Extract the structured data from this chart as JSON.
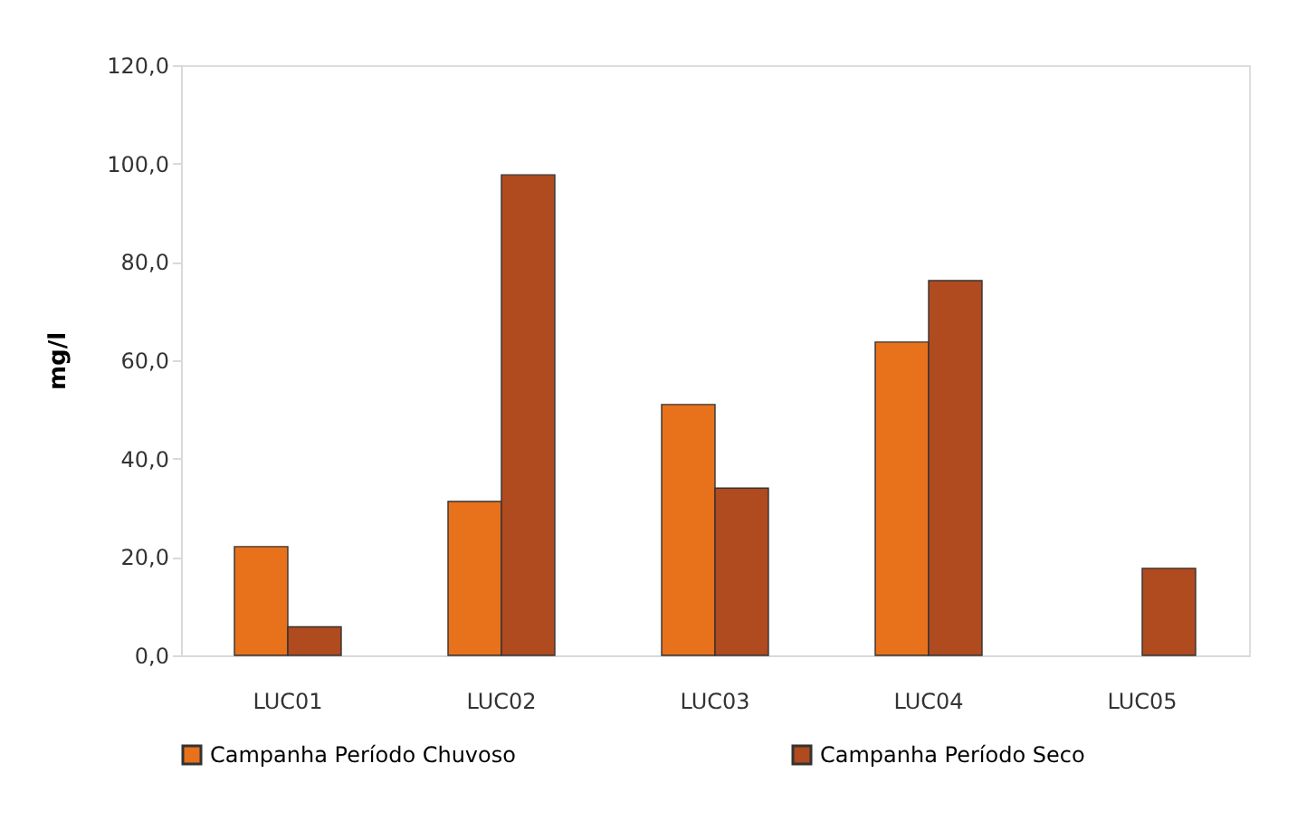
{
  "chart_data": {
    "type": "bar",
    "ylabel": "mg/l",
    "categories": [
      "LUC01",
      "LUC02",
      "LUC03",
      "LUC04",
      "LUC05"
    ],
    "series": [
      {
        "name": "Campanha Período Chuvoso",
        "color": "#e8711b",
        "values": [
          22.1,
          31.3,
          51.0,
          63.7,
          null
        ]
      },
      {
        "name": "Campanha Período Seco",
        "color": "#b04a1f",
        "values": [
          5.8,
          97.7,
          34.0,
          76.2,
          17.7
        ]
      }
    ],
    "ylim": [
      0,
      120
    ],
    "yticks": [
      {
        "value": 0,
        "label": "0,0"
      },
      {
        "value": 20,
        "label": "20,0"
      },
      {
        "value": 40,
        "label": "40,0"
      },
      {
        "value": 60,
        "label": "60,0"
      },
      {
        "value": 80,
        "label": "80,0"
      },
      {
        "value": 100,
        "label": "100,0"
      },
      {
        "value": 120,
        "label": "120,0"
      }
    ],
    "grid": false,
    "legend": "bottom"
  }
}
